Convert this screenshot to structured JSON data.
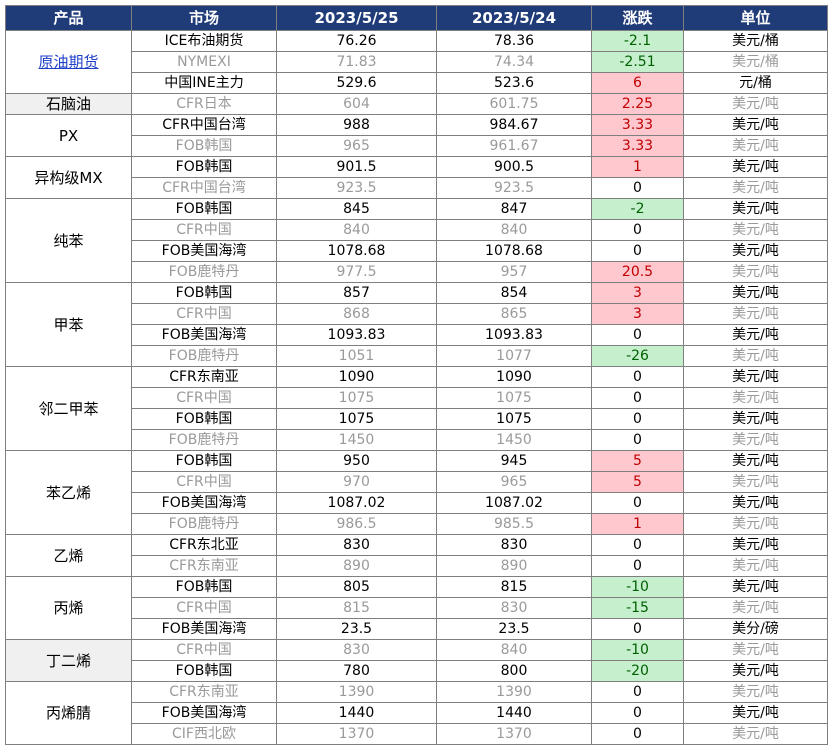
{
  "headers": [
    "产品",
    "市场",
    "2023/5/25",
    "2023/5/24",
    "涨跌",
    "单位"
  ],
  "groups": [
    {
      "product": "原油期货",
      "link": true,
      "shaded": false,
      "rows": [
        {
          "market": "ICE布油期货",
          "d1": "76.26",
          "d2": "78.36",
          "chg": "-2.1",
          "dir": "down",
          "unit": "美元/桶",
          "muted": false
        },
        {
          "market": "NYMEXI",
          "d1": "71.83",
          "d2": "74.34",
          "chg": "-2.51",
          "dir": "down",
          "unit": "美元/桶",
          "muted": true
        },
        {
          "market": "中国INE主力",
          "d1": "529.6",
          "d2": "523.6",
          "chg": "6",
          "dir": "up",
          "unit": "元/桶",
          "muted": false
        }
      ]
    },
    {
      "product": "石脑油",
      "link": false,
      "shaded": true,
      "rows": [
        {
          "market": "CFR日本",
          "d1": "604",
          "d2": "601.75",
          "chg": "2.25",
          "dir": "up",
          "unit": "美元/吨",
          "muted": true
        }
      ]
    },
    {
      "product": "PX",
      "link": false,
      "shaded": false,
      "rows": [
        {
          "market": "CFR中国台湾",
          "d1": "988",
          "d2": "984.67",
          "chg": "3.33",
          "dir": "up",
          "unit": "美元/吨",
          "muted": false
        },
        {
          "market": "FOB韩国",
          "d1": "965",
          "d2": "961.67",
          "chg": "3.33",
          "dir": "up",
          "unit": "美元/吨",
          "muted": true
        }
      ]
    },
    {
      "product": "异构级MX",
      "link": false,
      "shaded": false,
      "rows": [
        {
          "market": "FOB韩国",
          "d1": "901.5",
          "d2": "900.5",
          "chg": "1",
          "dir": "up",
          "unit": "美元/吨",
          "muted": false
        },
        {
          "market": "CFR中国台湾",
          "d1": "923.5",
          "d2": "923.5",
          "chg": "0",
          "dir": "flat",
          "unit": "美元/吨",
          "muted": true
        }
      ]
    },
    {
      "product": "纯苯",
      "link": false,
      "shaded": false,
      "rows": [
        {
          "market": "FOB韩国",
          "d1": "845",
          "d2": "847",
          "chg": "-2",
          "dir": "down",
          "unit": "美元/吨",
          "muted": false
        },
        {
          "market": "CFR中国",
          "d1": "840",
          "d2": "840",
          "chg": "0",
          "dir": "flat",
          "unit": "美元/吨",
          "muted": true
        },
        {
          "market": "FOB美国海湾",
          "d1": "1078.68",
          "d2": "1078.68",
          "chg": "0",
          "dir": "flat",
          "unit": "美元/吨",
          "muted": false
        },
        {
          "market": "FOB鹿特丹",
          "d1": "977.5",
          "d2": "957",
          "chg": "20.5",
          "dir": "up",
          "unit": "美元/吨",
          "muted": true
        }
      ]
    },
    {
      "product": "甲苯",
      "link": false,
      "shaded": false,
      "rows": [
        {
          "market": "FOB韩国",
          "d1": "857",
          "d2": "854",
          "chg": "3",
          "dir": "up",
          "unit": "美元/吨",
          "muted": false
        },
        {
          "market": "CFR中国",
          "d1": "868",
          "d2": "865",
          "chg": "3",
          "dir": "up",
          "unit": "美元/吨",
          "muted": true
        },
        {
          "market": "FOB美国海湾",
          "d1": "1093.83",
          "d2": "1093.83",
          "chg": "0",
          "dir": "flat",
          "unit": "美元/吨",
          "muted": false
        },
        {
          "market": "FOB鹿特丹",
          "d1": "1051",
          "d2": "1077",
          "chg": "-26",
          "dir": "down",
          "unit": "美元/吨",
          "muted": true
        }
      ]
    },
    {
      "product": "邻二甲苯",
      "link": false,
      "shaded": false,
      "rows": [
        {
          "market": "CFR东南亚",
          "d1": "1090",
          "d2": "1090",
          "chg": "0",
          "dir": "flat",
          "unit": "美元/吨",
          "muted": false
        },
        {
          "market": "CFR中国",
          "d1": "1075",
          "d2": "1075",
          "chg": "0",
          "dir": "flat",
          "unit": "美元/吨",
          "muted": true
        },
        {
          "market": "FOB韩国",
          "d1": "1075",
          "d2": "1075",
          "chg": "0",
          "dir": "flat",
          "unit": "美元/吨",
          "muted": false
        },
        {
          "market": "FOB鹿特丹",
          "d1": "1450",
          "d2": "1450",
          "chg": "0",
          "dir": "flat",
          "unit": "美元/吨",
          "muted": true
        }
      ]
    },
    {
      "product": "苯乙烯",
      "link": false,
      "shaded": false,
      "rows": [
        {
          "market": "FOB韩国",
          "d1": "950",
          "d2": "945",
          "chg": "5",
          "dir": "up",
          "unit": "美元/吨",
          "muted": false
        },
        {
          "market": "CFR中国",
          "d1": "970",
          "d2": "965",
          "chg": "5",
          "dir": "up",
          "unit": "美元/吨",
          "muted": true
        },
        {
          "market": "FOB美国海湾",
          "d1": "1087.02",
          "d2": "1087.02",
          "chg": "0",
          "dir": "flat",
          "unit": "美元/吨",
          "muted": false
        },
        {
          "market": "FOB鹿特丹",
          "d1": "986.5",
          "d2": "985.5",
          "chg": "1",
          "dir": "up",
          "unit": "美元/吨",
          "muted": true
        }
      ]
    },
    {
      "product": "乙烯",
      "link": false,
      "shaded": false,
      "rows": [
        {
          "market": "CFR东北亚",
          "d1": "830",
          "d2": "830",
          "chg": "0",
          "dir": "flat",
          "unit": "美元/吨",
          "muted": false
        },
        {
          "market": "CFR东南亚",
          "d1": "890",
          "d2": "890",
          "chg": "0",
          "dir": "flat",
          "unit": "美元/吨",
          "muted": true
        }
      ]
    },
    {
      "product": "丙烯",
      "link": false,
      "shaded": false,
      "rows": [
        {
          "market": "FOB韩国",
          "d1": "805",
          "d2": "815",
          "chg": "-10",
          "dir": "down",
          "unit": "美元/吨",
          "muted": false
        },
        {
          "market": "CFR中国",
          "d1": "815",
          "d2": "830",
          "chg": "-15",
          "dir": "down",
          "unit": "美元/吨",
          "muted": true
        },
        {
          "market": "FOB美国海湾",
          "d1": "23.5",
          "d2": "23.5",
          "chg": "0",
          "dir": "flat",
          "unit": "美分/磅",
          "muted": false
        }
      ]
    },
    {
      "product": "丁二烯",
      "link": false,
      "shaded": true,
      "rows": [
        {
          "market": "CFR中国",
          "d1": "830",
          "d2": "840",
          "chg": "-10",
          "dir": "down",
          "unit": "美元/吨",
          "muted": true
        },
        {
          "market": "FOB韩国",
          "d1": "780",
          "d2": "800",
          "chg": "-20",
          "dir": "down",
          "unit": "美元/吨",
          "muted": false
        }
      ]
    },
    {
      "product": "丙烯腈",
      "link": false,
      "shaded": false,
      "rows": [
        {
          "market": "CFR东南亚",
          "d1": "1390",
          "d2": "1390",
          "chg": "0",
          "dir": "flat",
          "unit": "美元/吨",
          "muted": true
        },
        {
          "market": "FOB美国海湾",
          "d1": "1440",
          "d2": "1440",
          "chg": "0",
          "dir": "flat",
          "unit": "美元/吨",
          "muted": false
        },
        {
          "market": "CIF西北欧",
          "d1": "1370",
          "d2": "1370",
          "chg": "0",
          "dir": "flat",
          "unit": "美元/吨",
          "muted": true
        }
      ]
    }
  ]
}
